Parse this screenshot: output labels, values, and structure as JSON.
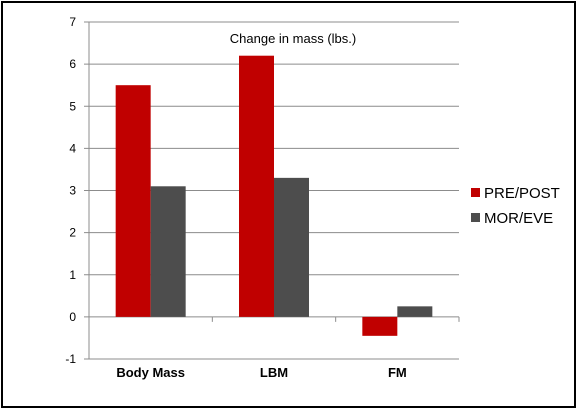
{
  "chart_data": {
    "type": "bar",
    "title": "Change in mass (lbs.)",
    "xlabel": "",
    "ylabel": "",
    "categories": [
      "Body Mass",
      "LBM",
      "FM"
    ],
    "series": [
      {
        "name": "PRE/POST",
        "values": [
          5.5,
          6.2,
          -0.45
        ],
        "color": "#c00000"
      },
      {
        "name": "MOR/EVE",
        "values": [
          3.1,
          3.3,
          0.25
        ],
        "color": "#4d4d4d"
      }
    ],
    "ylim": [
      -1,
      7
    ],
    "yticks": [
      -1,
      0,
      1,
      2,
      3,
      4,
      5,
      6,
      7
    ],
    "grid": true,
    "legend_position": "right",
    "colors": {
      "grid": "#8c8c8c",
      "axis": "#8c8c8c",
      "frame": "#000000"
    }
  }
}
